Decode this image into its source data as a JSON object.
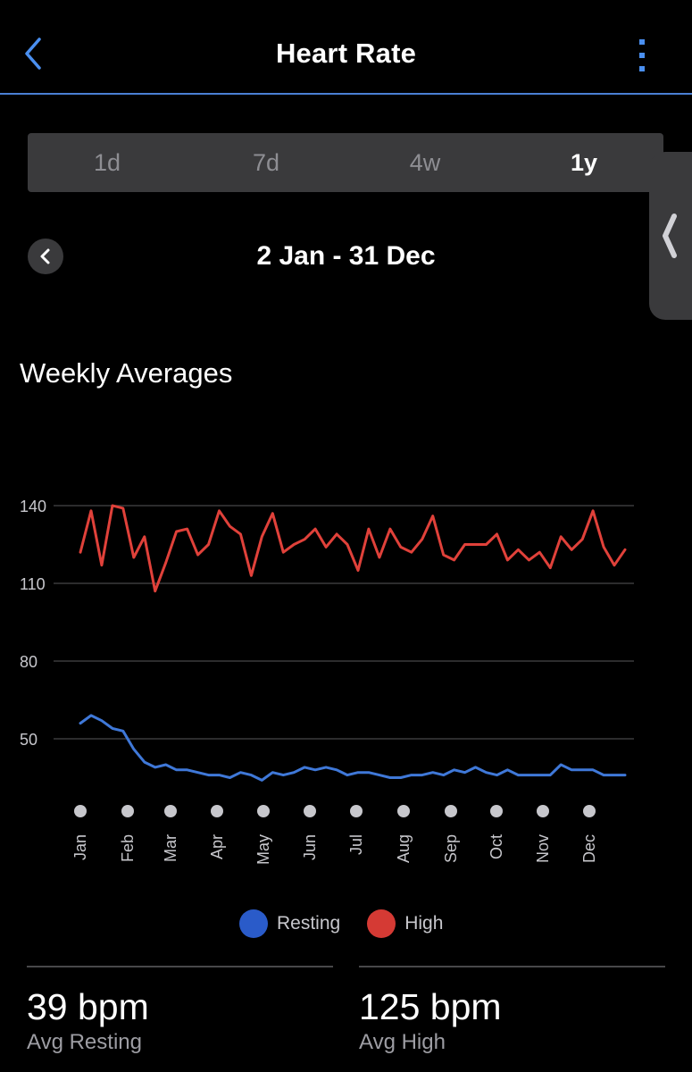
{
  "header": {
    "title": "Heart Rate"
  },
  "tabs": [
    {
      "label": "1d",
      "active": false
    },
    {
      "label": "7d",
      "active": false
    },
    {
      "label": "4w",
      "active": false
    },
    {
      "label": "1y",
      "active": true
    }
  ],
  "date_range": "2 Jan - 31 Dec",
  "section_title": "Weekly Averages",
  "colors": {
    "accent": "#4a8ff0",
    "resting": "#3f78d8",
    "high": "#e0413a",
    "background": "#000000",
    "surface": "#3a3a3c"
  },
  "icons": {
    "back": "chevron-left-icon",
    "more": "vertical-ellipsis-icon",
    "prev": "chevron-left-icon",
    "handle": "chevron-left-icon"
  },
  "legend": [
    {
      "label": "Resting",
      "color": "#2a5bc9"
    },
    {
      "label": "High",
      "color": "#d53a34"
    }
  ],
  "stats": [
    {
      "value": "39 bpm",
      "label": "Avg Resting"
    },
    {
      "value": "125 bpm",
      "label": "Avg High"
    }
  ],
  "chart_data": {
    "type": "line",
    "title": "",
    "xlabel": "",
    "ylabel": "",
    "yticks": [
      50,
      80,
      110,
      140
    ],
    "ylim": [
      32,
      148
    ],
    "grid": true,
    "legend_position": "bottom",
    "months": [
      "Jan",
      "Feb",
      "Mar",
      "Apr",
      "May",
      "Jun",
      "Jul",
      "Aug",
      "Sep",
      "Oct",
      "Nov",
      "Dec"
    ],
    "series": [
      {
        "name": "High",
        "color": "#e0413a",
        "values": [
          122,
          138,
          117,
          140,
          139,
          120,
          128,
          107,
          118,
          130,
          131,
          121,
          125,
          138,
          132,
          129,
          113,
          128,
          137,
          122,
          125,
          127,
          131,
          124,
          129,
          125,
          115,
          131,
          120,
          131,
          124,
          122,
          127,
          136,
          121,
          119,
          125,
          125,
          125,
          129,
          119,
          123,
          119,
          122,
          116,
          128,
          123,
          127,
          138,
          124,
          117,
          123
        ]
      },
      {
        "name": "Resting",
        "color": "#3f78d8",
        "values": [
          56,
          59,
          57,
          54,
          53,
          46,
          41,
          39,
          40,
          38,
          38,
          37,
          36,
          36,
          35,
          37,
          36,
          34,
          37,
          36,
          37,
          39,
          38,
          39,
          38,
          36,
          37,
          37,
          36,
          35,
          35,
          36,
          36,
          37,
          36,
          38,
          37,
          39,
          37,
          36,
          38,
          36,
          36,
          36,
          36,
          40,
          38,
          38,
          38,
          36,
          36,
          36
        ]
      }
    ]
  }
}
